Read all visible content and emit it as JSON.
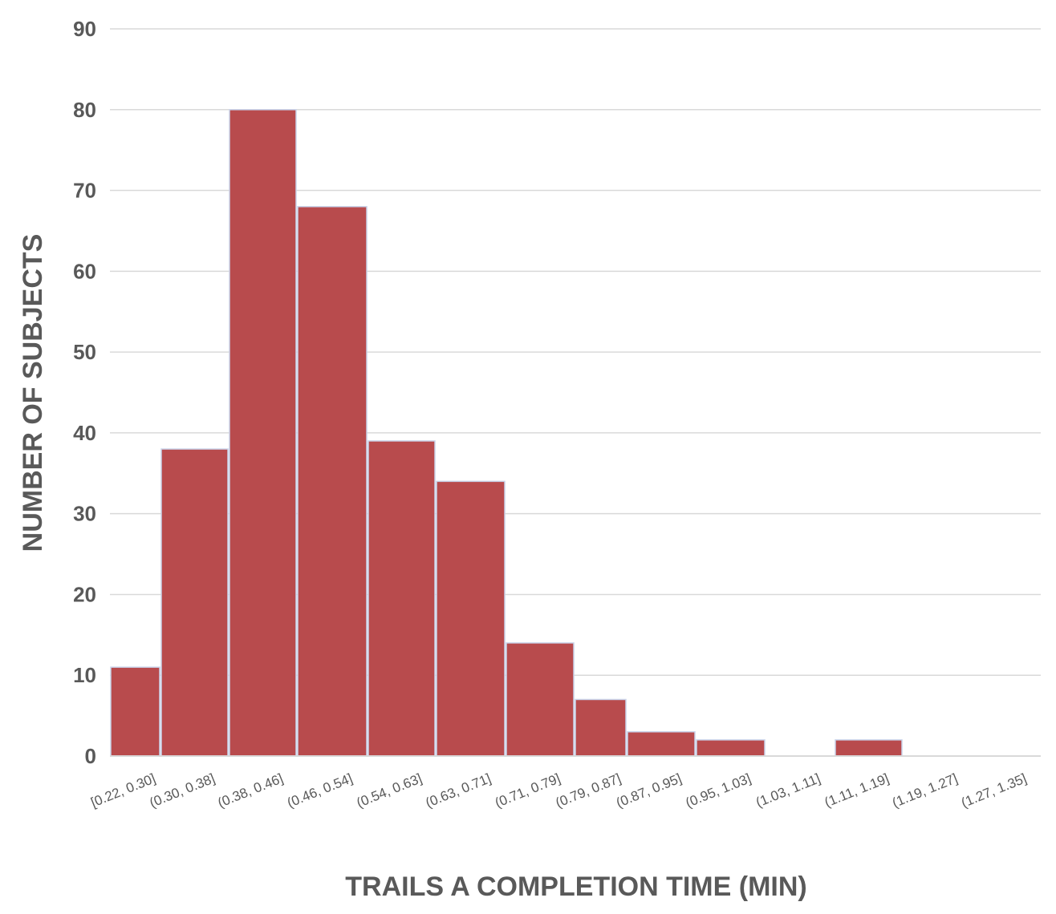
{
  "chart_data": {
    "type": "bar",
    "title": "",
    "xlabel": "TRAILS A COMPLETION TIME (MIN)",
    "ylabel": "NUMBER OF SUBJECTS",
    "categories": [
      "[0.22, 0.30]",
      "(0.30, 0.38]",
      "(0.38, 0.46]",
      "(0.46, 0.54]",
      "(0.54, 0.63]",
      "(0.63, 0.71]",
      "(0.71, 0.79]",
      "(0.79, 0.87]",
      "(0.87, 0.95]",
      "(0.95, 1.03]",
      "(1.03, 1.11]",
      "(1.11, 1.19]",
      "(1.19, 1.27]",
      "(1.27, 1.35]"
    ],
    "values": [
      11,
      38,
      80,
      68,
      39,
      34,
      14,
      7,
      3,
      2,
      0,
      2,
      0,
      0
    ],
    "ylim": [
      0,
      90
    ],
    "yticks": [
      "0",
      "10",
      "20",
      "30",
      "40",
      "50",
      "60",
      "70",
      "80",
      "90"
    ],
    "grid": true,
    "legend": "none",
    "colors": {
      "bar": "#b84b4d",
      "bar_edge": "#c9d3ea",
      "grid": "#d9d9d9",
      "text": "#595959"
    }
  }
}
